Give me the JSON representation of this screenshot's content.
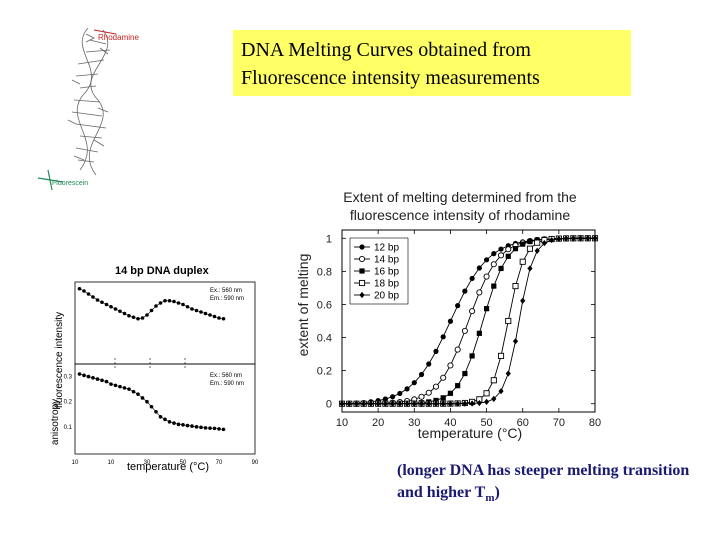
{
  "title": {
    "line1": "DNA Melting Curves obtained from",
    "line2": "Fluorescence intensity measurements"
  },
  "molecule_figure": {
    "label_top": "Rhodamine",
    "label_bottom": "Fluorescein",
    "colors": {
      "helix": "#555555",
      "top_label": "#cc2222",
      "bottom_label": "#228855"
    }
  },
  "caption": {
    "text": "(longer DNA has steeper melting transition and higher T",
    "sub": "m",
    "end": ")"
  },
  "chart_data": [
    {
      "type": "line",
      "title": "14 bp DNA duplex",
      "panels": [
        {
          "name": "intensity",
          "ylabel": "fluorescence intensity",
          "annotation": [
            "Ex.: 560 nm",
            "Em.: 590 nm"
          ],
          "x": [
            12,
            14,
            16,
            18,
            20,
            22,
            24,
            26,
            28,
            30,
            32,
            34,
            36,
            38,
            40,
            42,
            44,
            46,
            48,
            50,
            52,
            54,
            56,
            58,
            60,
            62,
            64,
            66,
            68,
            70,
            72,
            74,
            76
          ],
          "y": [
            0.95,
            0.92,
            0.88,
            0.84,
            0.8,
            0.77,
            0.74,
            0.71,
            0.68,
            0.65,
            0.62,
            0.59,
            0.57,
            0.55,
            0.56,
            0.6,
            0.66,
            0.72,
            0.76,
            0.79,
            0.79,
            0.78,
            0.76,
            0.74,
            0.71,
            0.68,
            0.66,
            0.64,
            0.62,
            0.6,
            0.58,
            0.56,
            0.55
          ]
        },
        {
          "name": "anisotropy",
          "ylabel": "anisotropy",
          "annotation": [
            "Ex.: 560 nm",
            "Em.: 590 nm"
          ],
          "yticks": [
            "0.3",
            "0.2",
            "0.1"
          ],
          "ylim": [
            0,
            0.35
          ],
          "x": [
            12,
            14,
            16,
            18,
            20,
            22,
            24,
            26,
            28,
            30,
            32,
            34,
            36,
            38,
            40,
            42,
            44,
            46,
            48,
            50,
            52,
            54,
            56,
            58,
            60,
            62,
            64,
            66,
            68,
            70,
            72,
            74,
            76
          ],
          "y": [
            0.31,
            0.305,
            0.3,
            0.295,
            0.29,
            0.285,
            0.28,
            0.27,
            0.265,
            0.26,
            0.255,
            0.25,
            0.24,
            0.23,
            0.215,
            0.2,
            0.18,
            0.16,
            0.14,
            0.13,
            0.12,
            0.115,
            0.11,
            0.108,
            0.105,
            0.103,
            0.1,
            0.098,
            0.096,
            0.095,
            0.094,
            0.092,
            0.09
          ]
        }
      ],
      "xlabel": "temperature (°C)",
      "xticks": [
        "10",
        "10",
        "30",
        "50",
        "70",
        "90"
      ],
      "xlim": [
        10,
        90
      ]
    },
    {
      "type": "line",
      "title": "Extent of melting determined from the fluorescence intensity of rhodamine",
      "title_line1": "Extent of melting determined from the",
      "title_line2": "fluorescence intensity of rhodamine",
      "xlabel": "temperature (°C)",
      "ylabel": "extent of melting",
      "xlim": [
        10,
        80
      ],
      "ylim": [
        -0.05,
        1.05
      ],
      "xticks": [
        10,
        20,
        30,
        40,
        50,
        60,
        70,
        80
      ],
      "yticks": [
        0,
        0.2,
        0.4,
        0.6,
        0.8,
        1
      ],
      "legend_position": "top-left",
      "x": [
        10,
        12,
        14,
        16,
        18,
        20,
        22,
        24,
        26,
        28,
        30,
        32,
        34,
        36,
        38,
        40,
        42,
        44,
        46,
        48,
        50,
        52,
        54,
        56,
        58,
        60,
        62,
        64,
        66,
        68,
        70,
        72,
        74,
        76,
        78,
        80
      ],
      "series": [
        {
          "name": "12 bp",
          "marker": "filled-circle",
          "tm": 40,
          "k": 0.19
        },
        {
          "name": "14 bp",
          "marker": "open-circle",
          "tm": 45,
          "k": 0.24
        },
        {
          "name": "16 bp",
          "marker": "filled-square",
          "tm": 49,
          "k": 0.3
        },
        {
          "name": "18 bp",
          "marker": "open-square",
          "tm": 56,
          "k": 0.45
        },
        {
          "name": "20 bp",
          "marker": "diamond",
          "tm": 59,
          "k": 0.5
        }
      ]
    }
  ]
}
